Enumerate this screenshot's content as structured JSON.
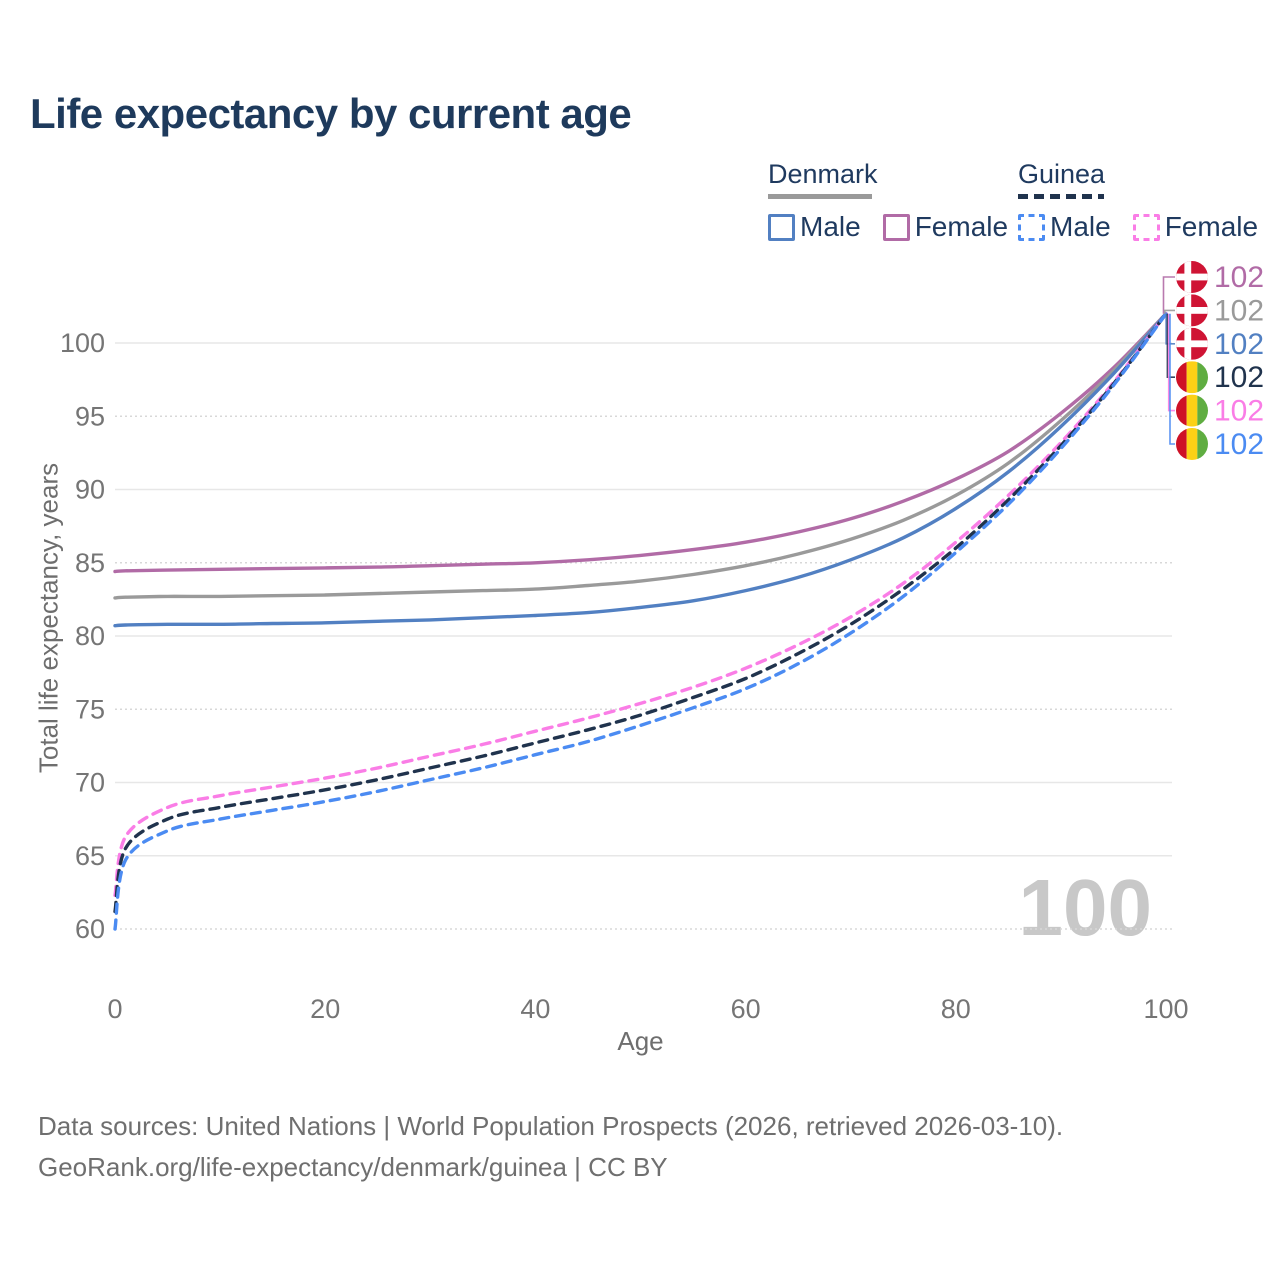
{
  "title": "Life expectancy by current age",
  "watermark": "100",
  "legend": {
    "denmark": {
      "title": "Denmark",
      "male": "Male",
      "female": "Female"
    },
    "guinea": {
      "title": "Guinea",
      "male": "Male",
      "female": "Female"
    }
  },
  "footer": {
    "line1": "Data sources: United Nations | World Population Prospects (2026, retrieved 2026-03-10).",
    "line2": "GeoRank.org/life-expectancy/denmark/guinea | CC BY"
  },
  "chart_data": {
    "type": "line",
    "title": "Life expectancy by current age",
    "xlabel": "Age",
    "ylabel": "Total life expectancy, years",
    "xlim": [
      0,
      100
    ],
    "ylim": [
      60,
      100
    ],
    "x_ticks": [
      0,
      20,
      40,
      60,
      80,
      100
    ],
    "y_ticks": [
      60,
      65,
      70,
      75,
      80,
      85,
      90,
      95,
      100
    ],
    "y_ticks_dotted": [
      60,
      75,
      85,
      95
    ],
    "grid": true,
    "legend_position": "top-right",
    "x": [
      0,
      1,
      5,
      10,
      15,
      20,
      25,
      30,
      35,
      40,
      45,
      50,
      55,
      60,
      65,
      70,
      75,
      80,
      85,
      90,
      95,
      100
    ],
    "series": [
      {
        "id": "denmark-female",
        "country": "Denmark",
        "sex": "Female",
        "color": "#b16ba6",
        "dash": false,
        "values": [
          84.4,
          84.45,
          84.5,
          84.55,
          84.6,
          84.65,
          84.7,
          84.8,
          84.9,
          85.0,
          85.2,
          85.5,
          85.9,
          86.4,
          87.1,
          88.0,
          89.2,
          90.7,
          92.6,
          95.2,
          98.3,
          102
        ]
      },
      {
        "id": "denmark-total",
        "country": "Denmark",
        "sex": "Total",
        "color": "#9a9a9a",
        "dash": false,
        "values": [
          82.6,
          82.65,
          82.7,
          82.7,
          82.75,
          82.8,
          82.9,
          83.0,
          83.1,
          83.2,
          83.45,
          83.75,
          84.2,
          84.8,
          85.6,
          86.6,
          87.9,
          89.6,
          91.8,
          94.7,
          98.1,
          102
        ]
      },
      {
        "id": "denmark-male",
        "country": "Denmark",
        "sex": "Male",
        "color": "#5280c2",
        "dash": false,
        "values": [
          80.7,
          80.75,
          80.8,
          80.8,
          80.85,
          80.9,
          81.0,
          81.1,
          81.25,
          81.4,
          81.6,
          81.95,
          82.4,
          83.1,
          84.0,
          85.2,
          86.7,
          88.7,
          91.2,
          94.3,
          97.9,
          102
        ]
      },
      {
        "id": "guinea-female",
        "country": "Guinea",
        "sex": "Female",
        "color": "#fa7de6",
        "dash": true,
        "values": [
          62.3,
          66.3,
          68.3,
          69.1,
          69.7,
          70.3,
          71.0,
          71.8,
          72.6,
          73.5,
          74.4,
          75.4,
          76.5,
          77.8,
          79.4,
          81.3,
          83.6,
          86.4,
          89.6,
          93.2,
          97.3,
          102
        ]
      },
      {
        "id": "guinea-total",
        "country": "Guinea",
        "sex": "Total",
        "color": "#20334d",
        "dash": true,
        "values": [
          61.2,
          65.5,
          67.5,
          68.3,
          68.9,
          69.5,
          70.2,
          71.0,
          71.8,
          72.7,
          73.6,
          74.6,
          75.8,
          77.1,
          78.8,
          80.8,
          83.2,
          86.0,
          89.3,
          93.0,
          97.2,
          102
        ]
      },
      {
        "id": "guinea-male",
        "country": "Guinea",
        "sex": "Male",
        "color": "#4b8bf2",
        "dash": true,
        "values": [
          60.0,
          64.7,
          66.7,
          67.5,
          68.1,
          68.7,
          69.4,
          70.2,
          71.0,
          71.9,
          72.8,
          73.9,
          75.1,
          76.4,
          78.1,
          80.2,
          82.7,
          85.7,
          89.0,
          92.8,
          97.1,
          102
        ]
      }
    ],
    "end_labels": [
      {
        "series": "denmark-female",
        "flag": "denmark",
        "value": "102"
      },
      {
        "series": "denmark-total",
        "flag": "denmark",
        "value": "102"
      },
      {
        "series": "denmark-male",
        "flag": "denmark",
        "value": "102"
      },
      {
        "series": "guinea-total",
        "flag": "guinea",
        "value": "102"
      },
      {
        "series": "guinea-female",
        "flag": "guinea",
        "value": "102"
      },
      {
        "series": "guinea-male",
        "flag": "guinea",
        "value": "102"
      }
    ],
    "flag_colors": {
      "denmark": {
        "red": "#cf1434",
        "cross": "#ffffff"
      },
      "guinea": {
        "red": "#ce1126",
        "yellow": "#fcd116",
        "green": "#5fad41"
      }
    },
    "gridline_colors": {
      "solid": "#e7e7e7",
      "dotted": "#d8d8d8"
    },
    "axis_text_color": "#757575"
  }
}
